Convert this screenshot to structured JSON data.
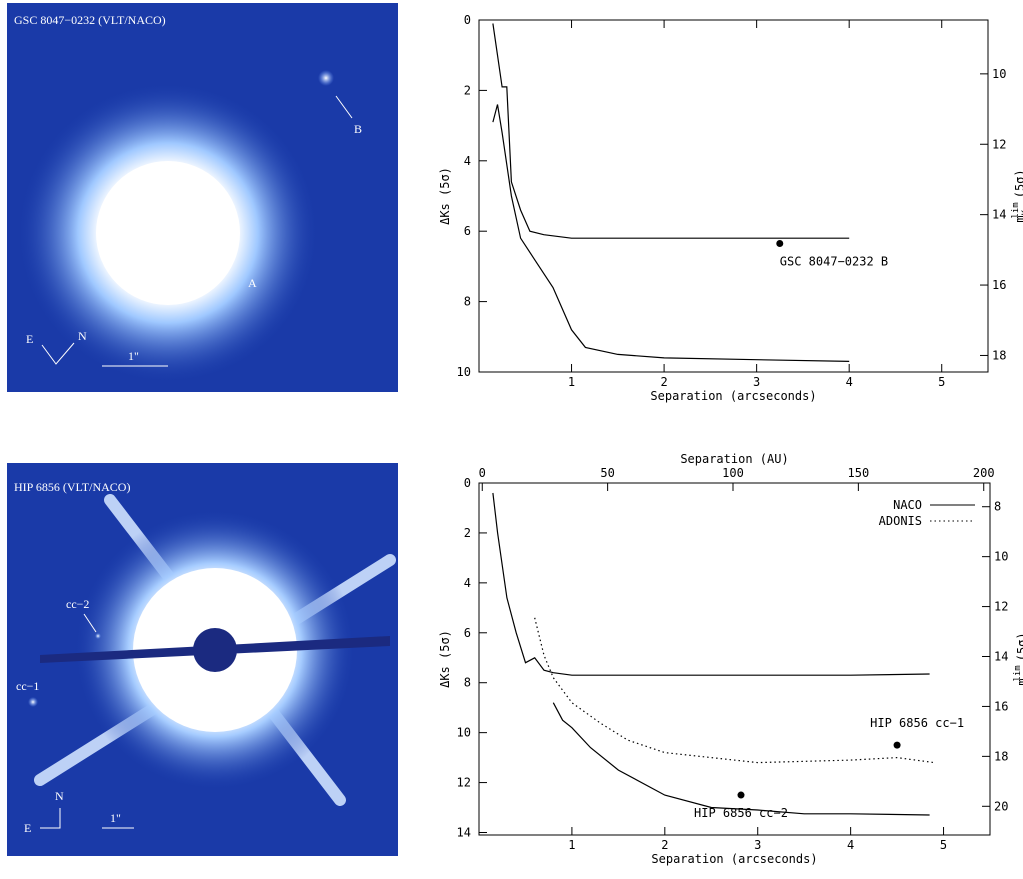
{
  "images": [
    {
      "title": "GSC 8047−0232 (VLT/NACO)",
      "labels": [
        "B",
        "A",
        "E",
        "N",
        "1\""
      ]
    },
    {
      "title": "HIP 6856 (VLT/NACO)",
      "labels": [
        "cc−2",
        "cc−1",
        "N",
        "E",
        "1\""
      ]
    }
  ],
  "chart_data": [
    {
      "type": "line",
      "xlabel": "Separation (arcseconds)",
      "ylabel": "ΔKs (5σ)",
      "y2label": {
        "m": "m",
        "sub": "Ks",
        "sup": "lim",
        "unit": "(5σ)"
      },
      "xlim": [
        0,
        5.5
      ],
      "xticks": [
        1,
        2,
        3,
        4,
        5
      ],
      "ylim": [
        10,
        0
      ],
      "yticks": [
        0,
        2,
        4,
        6,
        8,
        10
      ],
      "y2lim": [
        18.47,
        8.47
      ],
      "y2ticks": [
        10,
        12,
        14,
        16,
        18
      ],
      "series": [
        {
          "color": "#000000",
          "dash": "solid",
          "x": [
            0.15,
            0.2,
            0.25,
            0.3,
            0.35,
            0.45,
            0.55,
            0.7,
            1.0,
            1.5,
            2.0,
            2.5,
            3.0,
            3.5,
            4.0
          ],
          "values": [
            0.1,
            1.0,
            1.9,
            1.9,
            4.6,
            5.4,
            6.0,
            6.1,
            6.2,
            6.2,
            6.2,
            6.2,
            6.2,
            6.2,
            6.2
          ]
        },
        {
          "color": "#000000",
          "dash": "solid",
          "x": [
            0.15,
            0.2,
            0.25,
            0.35,
            0.45,
            0.6,
            0.8,
            1.0,
            1.15,
            1.5,
            2.0,
            3.0,
            4.0
          ],
          "values": [
            2.9,
            2.4,
            3.2,
            5.0,
            6.2,
            6.8,
            7.6,
            8.8,
            9.3,
            9.5,
            9.6,
            9.65,
            9.7
          ]
        }
      ],
      "points": [
        {
          "label": "GSC 8047−0232 B",
          "x": 3.25,
          "y": 6.35
        }
      ]
    },
    {
      "type": "line",
      "xlabel": "Separation (arcseconds)",
      "ylabel": "ΔKs (5σ)",
      "x2label": "Separation (AU)",
      "y2label": {
        "m": "m",
        "sub": "Ks",
        "sup": "lim",
        "unit": "(5σ)"
      },
      "xlim": [
        0,
        5.5
      ],
      "xticks": [
        1,
        2,
        3,
        4,
        5
      ],
      "x2lim": [
        -1.3,
        202.5
      ],
      "x2ticks": [
        0,
        50,
        100,
        150,
        200
      ],
      "ylim": [
        14.1,
        0
      ],
      "yticks": [
        0,
        2,
        4,
        6,
        8,
        10,
        12,
        14
      ],
      "y2lim": [
        21.15,
        7.05
      ],
      "y2ticks": [
        8,
        10,
        12,
        14,
        16,
        18,
        20
      ],
      "legend": "upper right",
      "series": [
        {
          "name": "NACO",
          "color": "#000000",
          "dash": "solid",
          "x": [
            0.15,
            0.2,
            0.3,
            0.4,
            0.5,
            0.6,
            0.7,
            0.8,
            1.0,
            2.0,
            3.0,
            4.0,
            4.85
          ],
          "values": [
            0.4,
            2.0,
            4.6,
            6.0,
            7.2,
            7.0,
            7.5,
            7.6,
            7.7,
            7.7,
            7.7,
            7.7,
            7.65
          ]
        },
        {
          "color": "#000000",
          "dash": "solid",
          "x": [
            0.8,
            0.9,
            1.0,
            1.2,
            1.5,
            2.0,
            2.5,
            3.0,
            3.5,
            4.0,
            4.85
          ],
          "values": [
            8.8,
            9.5,
            9.8,
            10.6,
            11.5,
            12.5,
            13.0,
            13.1,
            13.25,
            13.25,
            13.3
          ]
        },
        {
          "name": "ADONIS",
          "color": "#000000",
          "dash": "dotted",
          "x": [
            0.6,
            0.7,
            0.8,
            1.0,
            1.3,
            1.6,
            2.0,
            2.5,
            3.0,
            4.0,
            4.5,
            4.9
          ],
          "values": [
            5.4,
            6.9,
            7.8,
            8.8,
            9.6,
            10.3,
            10.8,
            11.0,
            11.2,
            11.1,
            11.0,
            11.2
          ]
        }
      ],
      "points": [
        {
          "label": "HIP 6856 cc−1",
          "x": 4.5,
          "y": 10.5
        },
        {
          "label": "HIP 6856 cc−2",
          "x": 2.82,
          "y": 12.5
        }
      ]
    }
  ]
}
